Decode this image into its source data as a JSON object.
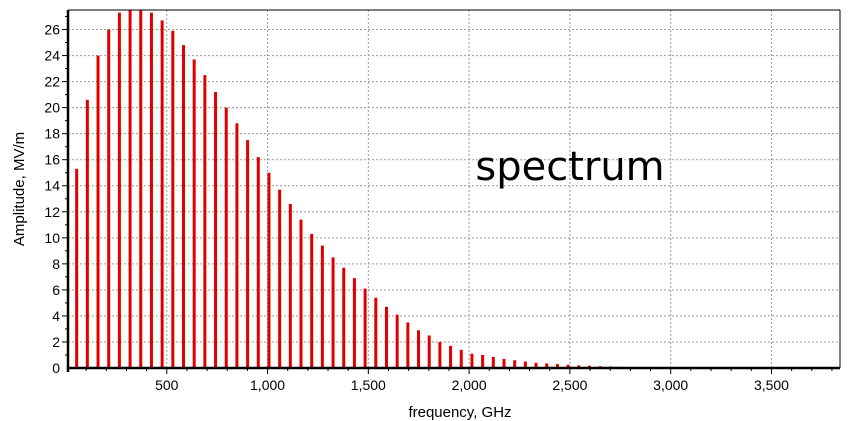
{
  "chart_data": {
    "type": "bar",
    "title": "",
    "annotation": "spectrum",
    "xlabel": "frequency, GHz",
    "ylabel": "Amplitude, MV/m",
    "xlim": [
      10,
      3840
    ],
    "ylim": [
      0,
      27.5
    ],
    "x_ticks": [
      500,
      1000,
      1500,
      2000,
      2500,
      3000,
      3500
    ],
    "x_tick_labels": [
      "500",
      "1,000",
      "1,500",
      "2,000",
      "2,500",
      "3,000",
      "3,500"
    ],
    "y_ticks": [
      0,
      2,
      4,
      6,
      8,
      10,
      12,
      14,
      16,
      18,
      20,
      22,
      24,
      26
    ],
    "y_tick_labels": [
      "0",
      "2",
      "4",
      "6",
      "8",
      "10",
      "12",
      "14",
      "16",
      "18",
      "20",
      "22",
      "24",
      "26"
    ],
    "grid": true,
    "bar_color": "#e00000",
    "series": [
      {
        "x": [
          53,
          106,
          159,
          212,
          265,
          318,
          371,
          424,
          477,
          530,
          583,
          636,
          689,
          742,
          795,
          848,
          901,
          954,
          1007,
          1060,
          1113,
          1166,
          1219,
          1272,
          1325,
          1378,
          1431,
          1484,
          1537,
          1590,
          1643,
          1696,
          1749,
          1802,
          1855,
          1908,
          1961,
          2014,
          2067,
          2120,
          2173,
          2226,
          2279,
          2332,
          2385,
          2438,
          2491,
          2544,
          2597,
          2650,
          2703,
          2756,
          2809,
          2862,
          2915,
          2968,
          3021,
          3074,
          3127,
          3180,
          3233,
          3286,
          3339,
          3392,
          3445,
          3498,
          3551,
          3604,
          3657,
          3710,
          3763,
          3816
        ],
        "values": [
          15.3,
          20.6,
          24.0,
          26.0,
          27.3,
          27.5,
          27.5,
          27.3,
          26.7,
          25.9,
          24.8,
          23.7,
          22.5,
          21.2,
          20.0,
          18.8,
          17.5,
          16.2,
          15.0,
          13.7,
          12.6,
          11.4,
          10.3,
          9.4,
          8.5,
          7.7,
          6.9,
          6.1,
          5.4,
          4.7,
          4.1,
          3.5,
          2.9,
          2.5,
          2.0,
          1.7,
          1.4,
          1.1,
          1.0,
          0.85,
          0.7,
          0.6,
          0.5,
          0.4,
          0.35,
          0.3,
          0.25,
          0.2,
          0.17,
          0.14,
          0.12,
          0.1,
          0.08,
          0.07,
          0.06,
          0.05,
          0.04,
          0.03,
          0.03,
          0.02,
          0.02,
          0.02,
          0.01,
          0.01,
          0.01,
          0.01,
          0.01,
          0.01,
          0.01,
          0.01,
          0.01,
          0.01
        ]
      }
    ]
  }
}
